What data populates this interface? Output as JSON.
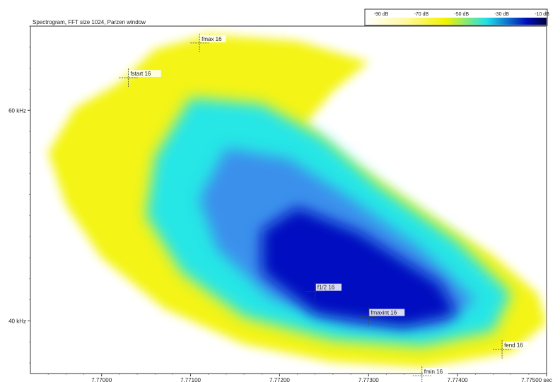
{
  "chart_data": {
    "type": "heatmap",
    "title": "Spectrogram, FFT size 1024, Parzen window",
    "x_unit": "sec",
    "x_range": [
      7.7692,
      7.775
    ],
    "y_range": [
      35,
      68
    ],
    "x_ticks": [
      {
        "value": 7.77,
        "label": "7.77000"
      },
      {
        "value": 7.771,
        "label": "7.77100"
      },
      {
        "value": 7.772,
        "label": "7.77200"
      },
      {
        "value": 7.773,
        "label": "7.77300"
      },
      {
        "value": 7.774,
        "label": "7.77400"
      },
      {
        "value": 7.775,
        "label": "7.77500 sec"
      }
    ],
    "y_ticks": [
      {
        "value": 40,
        "label": "40 kHz"
      },
      {
        "value": 60,
        "label": "60 kHz"
      }
    ],
    "color_scale": {
      "stops": [
        {
          "db": -90,
          "label": "-90 dB",
          "color": "#ffffff"
        },
        {
          "db": -70,
          "label": "-70 dB",
          "color": "#fff8a0"
        },
        {
          "db": -50,
          "label": "-50 dB",
          "color": "#f2f200"
        },
        {
          "db": -30,
          "label": "-30 dB",
          "color": "#20e0e8"
        },
        {
          "db": -10,
          "label": "-10 dB",
          "color": "#0010b8"
        },
        {
          "db": 0,
          "label": "",
          "color": "#000040"
        }
      ]
    },
    "colors": {
      "outer": "#f4f414",
      "mid": "#28e6e6",
      "inner": "#3a90ec",
      "core": "#0010c0"
    },
    "markers": [
      {
        "label": "fmax 16",
        "x": 7.7711,
        "y": 66.4
      },
      {
        "label": "fstart 16",
        "x": 7.7703,
        "y": 63.1
      },
      {
        "label": "f1/2 16",
        "x": 7.7724,
        "y": 42.8
      },
      {
        "label": "fmaxint 16",
        "x": 7.773,
        "y": 40.4
      },
      {
        "label": "fend 16",
        "x": 7.7745,
        "y": 37.3
      },
      {
        "label": "fmin 16",
        "x": 7.7736,
        "y": 34.8
      }
    ]
  }
}
